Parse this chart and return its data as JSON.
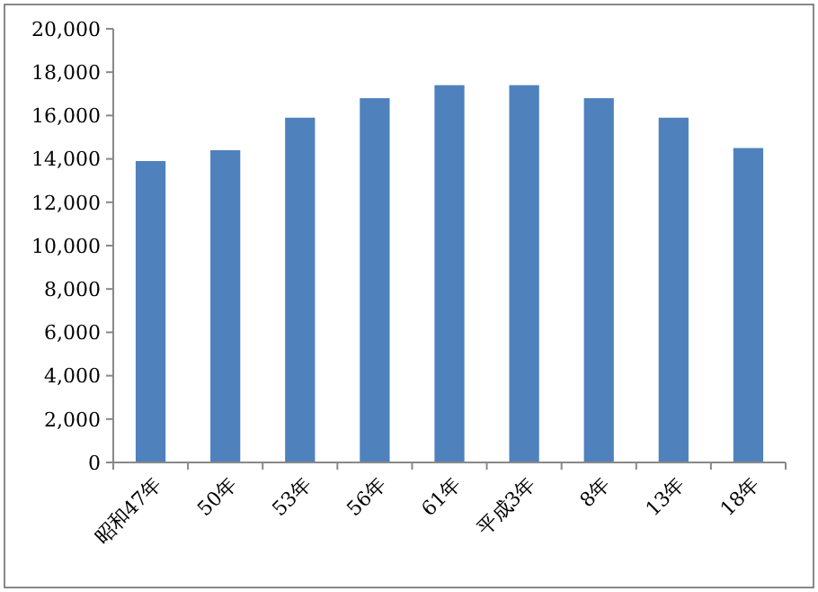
{
  "chart_data": {
    "type": "bar",
    "categories": [
      "昭和47年",
      "50年",
      "53年",
      "56年",
      "61年",
      "平成3年",
      "8年",
      "13年",
      "18年"
    ],
    "values": [
      13900,
      14400,
      15900,
      16800,
      17400,
      17400,
      16800,
      15900,
      14500
    ],
    "color": "#4f81bd",
    "ylim": [
      0,
      20000
    ],
    "yticks": [
      {
        "value": 0,
        "label": "0"
      },
      {
        "value": 2000,
        "label": "2,000"
      },
      {
        "value": 4000,
        "label": "4,000"
      },
      {
        "value": 6000,
        "label": "6,000"
      },
      {
        "value": 8000,
        "label": "8,000"
      },
      {
        "value": 10000,
        "label": "10,000"
      },
      {
        "value": 12000,
        "label": "12,000"
      },
      {
        "value": 14000,
        "label": "14,000"
      },
      {
        "value": 16000,
        "label": "16,000"
      },
      {
        "value": 18000,
        "label": "18,000"
      },
      {
        "value": 20000,
        "label": "20,000"
      }
    ]
  }
}
